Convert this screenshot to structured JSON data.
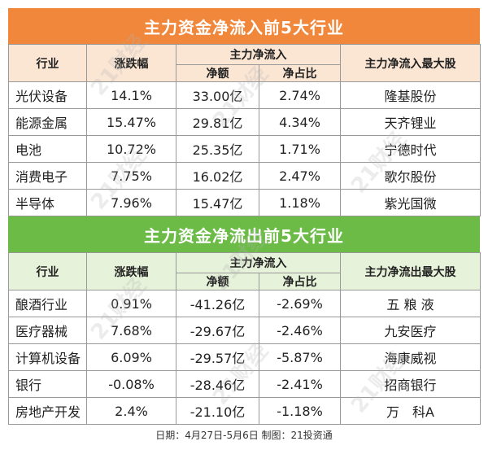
{
  "inflow": {
    "title": "主力资金净流入前5大行业",
    "headers": {
      "industry": "行业",
      "change": "涨跌幅",
      "group": "主力净流入",
      "net": "净额",
      "ratio": "净占比",
      "top_stock": "主力净流入最大股"
    },
    "rows": [
      {
        "industry": "光伏设备",
        "change": "14.1%",
        "net": "33.00亿",
        "ratio": "2.74%",
        "stock": "隆基股份"
      },
      {
        "industry": "能源金属",
        "change": "15.47%",
        "net": "29.81亿",
        "ratio": "4.34%",
        "stock": "天齐锂业"
      },
      {
        "industry": "电池",
        "change": "10.72%",
        "net": "25.35亿",
        "ratio": "1.71%",
        "stock": "宁德时代"
      },
      {
        "industry": "消费电子",
        "change": "7.75%",
        "net": "16.02亿",
        "ratio": "2.47%",
        "stock": "歌尔股份"
      },
      {
        "industry": "半导体",
        "change": "7.96%",
        "net": "15.47亿",
        "ratio": "1.18%",
        "stock": "紫光国微"
      }
    ]
  },
  "outflow": {
    "title": "主力资金净流出前5大行业",
    "headers": {
      "industry": "行业",
      "change": "涨跌幅",
      "group": "主力净流入",
      "net": "净额",
      "ratio": "净占比",
      "top_stock": "主力净流出最大股"
    },
    "rows": [
      {
        "industry": "酿酒行业",
        "change": "0.91%",
        "net": "-41.26亿",
        "ratio": "-2.69%",
        "stock": "五 粮 液"
      },
      {
        "industry": "医疗器械",
        "change": "7.68%",
        "net": "-29.67亿",
        "ratio": "-2.46%",
        "stock": "九安医疗"
      },
      {
        "industry": "计算机设备",
        "change": "6.09%",
        "net": "-29.57亿",
        "ratio": "-5.87%",
        "stock": "海康威视"
      },
      {
        "industry": "银行",
        "change": "-0.08%",
        "net": "-28.46亿",
        "ratio": "-2.41%",
        "stock": "招商银行"
      },
      {
        "industry": "房地产开发",
        "change": "2.4%",
        "net": "-21.10亿",
        "ratio": "-1.18%",
        "stock": "万　科A"
      }
    ]
  },
  "footer": "日期：4月27日-5月6日 制图：21投资通",
  "watermark": "21财经"
}
